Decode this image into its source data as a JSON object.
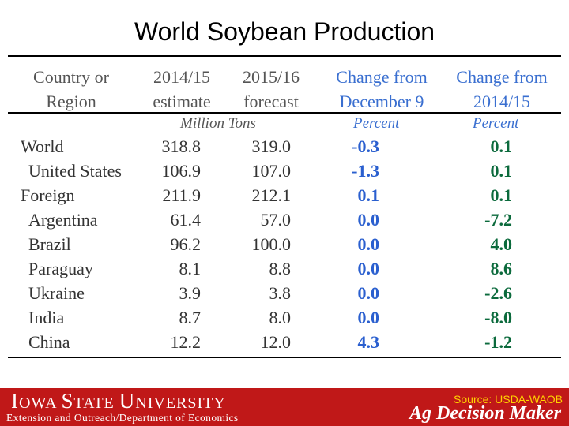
{
  "title": "World Soybean Production",
  "headers": {
    "country": [
      "Country or",
      "Region"
    ],
    "est": [
      "2014/15",
      "estimate"
    ],
    "fcst": [
      "2015/16",
      "forecast"
    ],
    "chg_dec": [
      "Change from",
      "December 9"
    ],
    "chg_prev": [
      "Change from",
      "2014/15"
    ]
  },
  "units": {
    "tons": "Million Tons",
    "pct1": "Percent",
    "pct2": "Percent"
  },
  "rows": [
    {
      "name": "World",
      "indent": 0,
      "est": "318.8",
      "fcst": "319.0",
      "chg_dec": "-0.3",
      "chg_prev": "0.1"
    },
    {
      "name": "United States",
      "indent": 1,
      "est": "106.9",
      "fcst": "107.0",
      "chg_dec": "-1.3",
      "chg_prev": "0.1"
    },
    {
      "name": "Foreign",
      "indent": 0,
      "est": "211.9",
      "fcst": "212.1",
      "chg_dec": "0.1",
      "chg_prev": "0.1"
    },
    {
      "name": "Argentina",
      "indent": 1,
      "est": "61.4",
      "fcst": "57.0",
      "chg_dec": "0.0",
      "chg_prev": "-7.2"
    },
    {
      "name": "Brazil",
      "indent": 1,
      "est": "96.2",
      "fcst": "100.0",
      "chg_dec": "0.0",
      "chg_prev": "4.0"
    },
    {
      "name": "Paraguay",
      "indent": 1,
      "est": "8.1",
      "fcst": "8.8",
      "chg_dec": "0.0",
      "chg_prev": "8.6"
    },
    {
      "name": "Ukraine",
      "indent": 1,
      "est": "3.9",
      "fcst": "3.8",
      "chg_dec": "0.0",
      "chg_prev": "-2.6"
    },
    {
      "name": "India",
      "indent": 1,
      "est": "8.7",
      "fcst": "8.0",
      "chg_dec": "0.0",
      "chg_prev": "-8.0"
    },
    {
      "name": "China",
      "indent": 1,
      "est": "12.2",
      "fcst": "12.0",
      "chg_dec": "4.3",
      "chg_prev": "-1.2"
    }
  ],
  "footer": {
    "university_big1": "I",
    "university_small1": "OWA ",
    "university_big2": "S",
    "university_small2": "TATE ",
    "university_big3": "U",
    "university_small3": "NIVERSITY",
    "extension": "Extension and Outreach/Department of Economics",
    "source": "Source: USDA-WAOB",
    "brand": "Ag Decision Maker"
  },
  "colors": {
    "footer_bg": "#c01818",
    "source_text": "#ffd200",
    "header_blue": "#3a6fd0",
    "change_blue": "#2a5fcf",
    "change_green": "#0b6a3c"
  }
}
